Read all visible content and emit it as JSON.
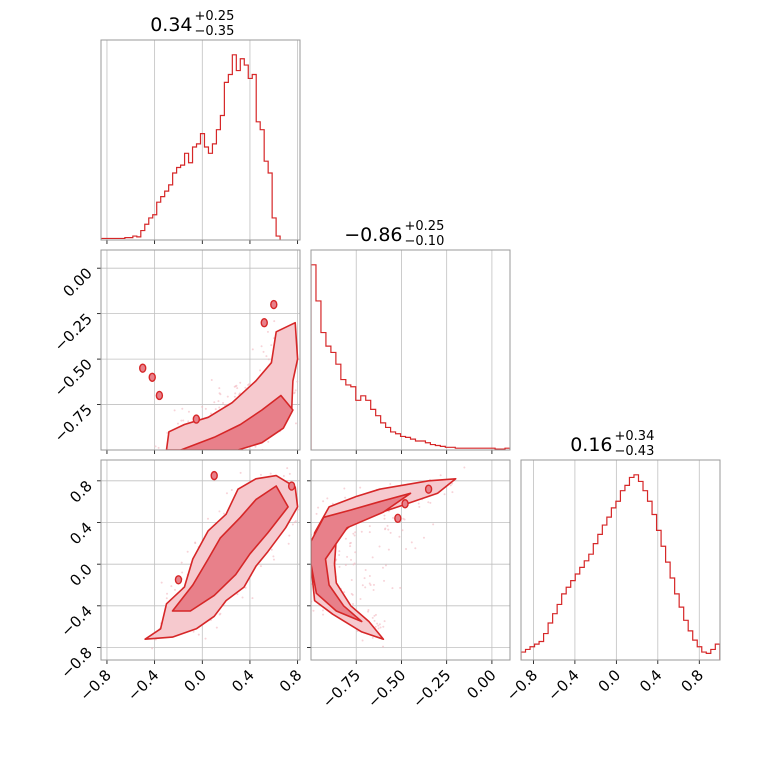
{
  "colors": {
    "accent": "#d62728",
    "fill_dark": "#e8808a",
    "fill_light": "#f6c9ce",
    "scatter": "#f2b8bf",
    "grid": "#c0c0c0",
    "spine": "#9a9a9a"
  },
  "chart_data": {
    "type": "corner",
    "grid": true,
    "titles": [
      {
        "base": "0.34",
        "upper": "+0.25",
        "lower": "−0.35"
      },
      {
        "base": "−0.86",
        "upper": "+0.25",
        "lower": "−0.10"
      },
      {
        "base": "0.16",
        "upper": "+0.34",
        "lower": "−0.43"
      }
    ],
    "ranges": [
      [
        -0.85,
        0.82
      ],
      [
        -1.0,
        0.1
      ],
      [
        -0.92,
        1.0
      ]
    ],
    "ticks": [
      {
        "values": [
          -0.8,
          -0.4,
          0.0,
          0.4,
          0.8
        ],
        "labels": [
          "−0.8",
          "−0.4",
          "0.0",
          "0.4",
          "0.8"
        ]
      },
      {
        "values": [
          -0.75,
          -0.5,
          -0.25,
          0.0
        ],
        "labels": [
          "−0.75",
          "−0.50",
          "−0.25",
          "0.00"
        ]
      },
      {
        "values": [
          -0.8,
          -0.4,
          0.0,
          0.4,
          0.8
        ],
        "labels": [
          "−0.8",
          "−0.4",
          "0.0",
          "0.4",
          "0.8"
        ]
      }
    ],
    "hist_param_1": {
      "edges_start": -0.85,
      "bin_width": 0.0334,
      "counts": [
        2,
        2,
        2,
        2,
        2,
        2,
        3,
        3,
        5,
        4,
        12,
        20,
        28,
        32,
        48,
        55,
        62,
        70,
        85,
        92,
        95,
        110,
        98,
        118,
        122,
        135,
        118,
        110,
        122,
        140,
        158,
        200,
        210,
        235,
        215,
        230,
        222,
        205,
        210,
        150,
        140,
        100,
        85,
        28,
        5
      ]
    },
    "hist_param_2": {
      "edges_start": -1.0,
      "bin_width": 0.0275,
      "counts": [
        205,
        165,
        130,
        115,
        108,
        95,
        78,
        72,
        70,
        55,
        60,
        55,
        45,
        38,
        30,
        25,
        20,
        18,
        15,
        14,
        12,
        10,
        10,
        8,
        6,
        5,
        4,
        3,
        3,
        2,
        2,
        2,
        2,
        2,
        2,
        2,
        2,
        1,
        1,
        2
      ]
    },
    "hist_param_3": {
      "edges_start": -0.92,
      "bin_width": 0.0436,
      "counts": [
        6,
        8,
        10,
        12,
        14,
        20,
        28,
        35,
        42,
        50,
        55,
        60,
        65,
        70,
        75,
        80,
        88,
        95,
        102,
        108,
        115,
        120,
        128,
        132,
        138,
        140,
        135,
        128,
        120,
        110,
        98,
        86,
        74,
        62,
        50,
        40,
        30,
        22,
        15,
        10,
        6,
        5,
        8,
        12
      ]
    },
    "contours_p1_p2": {
      "outer": [
        [
          -0.3,
          -1.0
        ],
        [
          -0.28,
          -0.9
        ],
        [
          -0.15,
          -0.86
        ],
        [
          0.05,
          -0.82
        ],
        [
          0.25,
          -0.74
        ],
        [
          0.45,
          -0.62
        ],
        [
          0.58,
          -0.52
        ],
        [
          0.62,
          -0.35
        ],
        [
          0.78,
          -0.3
        ],
        [
          0.8,
          -0.5
        ],
        [
          0.76,
          -0.62
        ],
        [
          0.75,
          -0.78
        ],
        [
          0.66,
          -0.87
        ],
        [
          0.5,
          -0.94
        ],
        [
          0.3,
          -1.0
        ]
      ],
      "inner": [
        [
          -0.18,
          -1.0
        ],
        [
          0.1,
          -0.93
        ],
        [
          0.32,
          -0.86
        ],
        [
          0.5,
          -0.78
        ],
        [
          0.66,
          -0.7
        ],
        [
          0.76,
          -0.78
        ],
        [
          0.68,
          -0.88
        ],
        [
          0.5,
          -0.96
        ],
        [
          0.3,
          -1.0
        ]
      ],
      "islands": [
        [
          -0.5,
          -0.55
        ],
        [
          -0.42,
          -0.6
        ],
        [
          -0.36,
          -0.7
        ],
        [
          0.52,
          -0.3
        ],
        [
          0.6,
          -0.2
        ],
        [
          -0.05,
          -0.83
        ]
      ]
    },
    "contours_p1_p3": {
      "outer": [
        [
          -0.48,
          -0.72
        ],
        [
          -0.35,
          -0.62
        ],
        [
          -0.3,
          -0.38
        ],
        [
          -0.15,
          -0.22
        ],
        [
          -0.08,
          0.05
        ],
        [
          0.05,
          0.32
        ],
        [
          0.2,
          0.48
        ],
        [
          0.3,
          0.72
        ],
        [
          0.45,
          0.82
        ],
        [
          0.62,
          0.85
        ],
        [
          0.78,
          0.74
        ],
        [
          0.8,
          0.55
        ],
        [
          0.7,
          0.35
        ],
        [
          0.55,
          0.12
        ],
        [
          0.45,
          -0.02
        ],
        [
          0.35,
          -0.22
        ],
        [
          0.2,
          -0.35
        ],
        [
          0.1,
          -0.5
        ],
        [
          -0.05,
          -0.62
        ],
        [
          -0.25,
          -0.7
        ]
      ],
      "inner": [
        [
          -0.25,
          -0.45
        ],
        [
          -0.08,
          -0.2
        ],
        [
          0.05,
          0.05
        ],
        [
          0.15,
          0.25
        ],
        [
          0.32,
          0.45
        ],
        [
          0.45,
          0.62
        ],
        [
          0.62,
          0.75
        ],
        [
          0.72,
          0.55
        ],
        [
          0.55,
          0.3
        ],
        [
          0.4,
          0.1
        ],
        [
          0.28,
          -0.1
        ],
        [
          0.1,
          -0.3
        ],
        [
          -0.1,
          -0.45
        ]
      ],
      "islands": [
        [
          0.1,
          0.85
        ],
        [
          0.75,
          0.75
        ],
        [
          -0.2,
          -0.15
        ]
      ]
    },
    "contours_p2_p3": {
      "outer": [
        [
          -0.98,
          0.3
        ],
        [
          -0.9,
          0.55
        ],
        [
          -0.75,
          0.65
        ],
        [
          -0.62,
          0.72
        ],
        [
          -0.35,
          0.8
        ],
        [
          -0.2,
          0.82
        ],
        [
          -0.3,
          0.68
        ],
        [
          -0.52,
          0.55
        ],
        [
          -0.75,
          0.42
        ],
        [
          -0.86,
          0.25
        ],
        [
          -0.87,
          0.0
        ],
        [
          -0.86,
          -0.18
        ],
        [
          -0.78,
          -0.4
        ],
        [
          -0.68,
          -0.55
        ],
        [
          -0.6,
          -0.72
        ],
        [
          -0.72,
          -0.65
        ],
        [
          -0.88,
          -0.48
        ],
        [
          -0.98,
          -0.35
        ],
        [
          -1.0,
          0.0
        ]
      ],
      "inner": [
        [
          -1.0,
          0.22
        ],
        [
          -0.93,
          0.45
        ],
        [
          -0.78,
          0.52
        ],
        [
          -0.62,
          0.6
        ],
        [
          -0.45,
          0.68
        ],
        [
          -0.6,
          0.5
        ],
        [
          -0.8,
          0.35
        ],
        [
          -0.92,
          0.05
        ],
        [
          -0.9,
          -0.2
        ],
        [
          -0.82,
          -0.4
        ],
        [
          -0.72,
          -0.55
        ],
        [
          -0.86,
          -0.45
        ],
        [
          -0.97,
          -0.28
        ],
        [
          -1.0,
          0.0
        ]
      ],
      "islands": [
        [
          -0.48,
          0.58
        ],
        [
          -0.52,
          0.44
        ],
        [
          -0.35,
          0.72
        ]
      ]
    }
  }
}
